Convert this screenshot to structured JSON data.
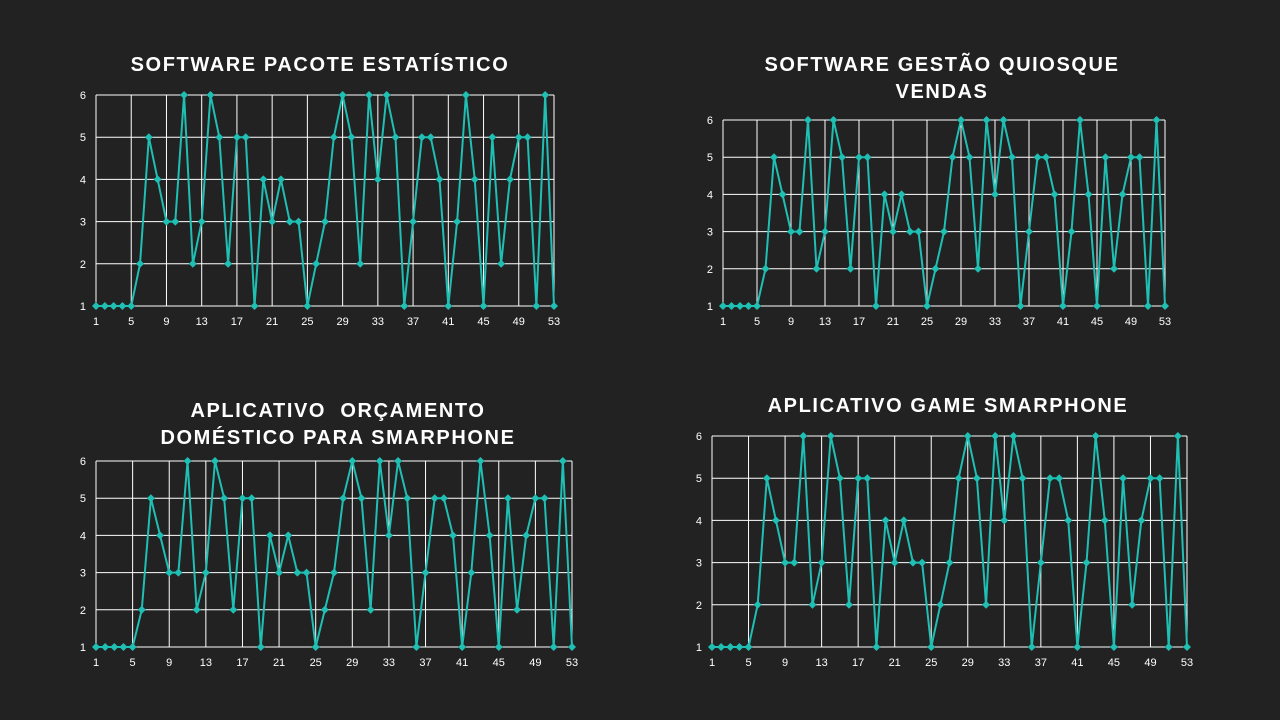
{
  "colors": {
    "background": "#222222",
    "line": "#1fbfb4",
    "grid": "#ffffff",
    "text": "#ffffff"
  },
  "chart_data": [
    {
      "type": "line",
      "title_lines": [
        "SOFTWARE PACOTE ESTATÍSTICO"
      ],
      "x": [
        1,
        2,
        3,
        4,
        5,
        6,
        7,
        8,
        9,
        10,
        11,
        12,
        13,
        14,
        15,
        16,
        17,
        18,
        19,
        20,
        21,
        22,
        23,
        24,
        25,
        26,
        27,
        28,
        29,
        30,
        31,
        32,
        33,
        34,
        35,
        36,
        37,
        38,
        39,
        40,
        41,
        42,
        43,
        44,
        45,
        46,
        47,
        48,
        49,
        50,
        51,
        52,
        53
      ],
      "values": [
        1,
        1,
        1,
        1,
        1,
        2,
        5,
        4,
        3,
        3,
        6,
        2,
        3,
        6,
        5,
        2,
        5,
        5,
        1,
        4,
        3,
        4,
        3,
        3,
        1,
        2,
        3,
        5,
        6,
        5,
        2,
        6,
        4,
        6,
        5,
        1,
        3,
        5,
        5,
        4,
        1,
        3,
        6,
        4,
        1,
        5,
        2,
        4,
        5,
        5,
        1,
        6,
        1
      ],
      "x_tick_labels": [
        "1",
        "5",
        "9",
        "13",
        "17",
        "21",
        "25",
        "29",
        "33",
        "37",
        "41",
        "45",
        "49",
        "53"
      ],
      "y_tick_labels": [
        "1",
        "2",
        "3",
        "4",
        "5",
        "6"
      ],
      "ylim": [
        1,
        6
      ],
      "grid": true,
      "marker": "diamond"
    },
    {
      "type": "line",
      "title_lines": [
        "SOFTWARE GESTÃO QUIOSQUE",
        "VENDAS"
      ],
      "x": [
        1,
        2,
        3,
        4,
        5,
        6,
        7,
        8,
        9,
        10,
        11,
        12,
        13,
        14,
        15,
        16,
        17,
        18,
        19,
        20,
        21,
        22,
        23,
        24,
        25,
        26,
        27,
        28,
        29,
        30,
        31,
        32,
        33,
        34,
        35,
        36,
        37,
        38,
        39,
        40,
        41,
        42,
        43,
        44,
        45,
        46,
        47,
        48,
        49,
        50,
        51,
        52,
        53
      ],
      "values": [
        1,
        1,
        1,
        1,
        1,
        2,
        5,
        4,
        3,
        3,
        6,
        2,
        3,
        6,
        5,
        2,
        5,
        5,
        1,
        4,
        3,
        4,
        3,
        3,
        1,
        2,
        3,
        5,
        6,
        5,
        2,
        6,
        4,
        6,
        5,
        1,
        3,
        5,
        5,
        4,
        1,
        3,
        6,
        4,
        1,
        5,
        2,
        4,
        5,
        5,
        1,
        6,
        1
      ],
      "x_tick_labels": [
        "1",
        "5",
        "9",
        "13",
        "17",
        "21",
        "25",
        "29",
        "33",
        "37",
        "41",
        "45",
        "49",
        "53"
      ],
      "y_tick_labels": [
        "1",
        "2",
        "3",
        "4",
        "5",
        "6"
      ],
      "ylim": [
        1,
        6
      ],
      "grid": true,
      "marker": "diamond"
    },
    {
      "type": "line",
      "title_lines": [
        "APLICATIVO  ORÇAMENTO",
        "DOMÉSTICO PARA SMARPHONE"
      ],
      "x": [
        1,
        2,
        3,
        4,
        5,
        6,
        7,
        8,
        9,
        10,
        11,
        12,
        13,
        14,
        15,
        16,
        17,
        18,
        19,
        20,
        21,
        22,
        23,
        24,
        25,
        26,
        27,
        28,
        29,
        30,
        31,
        32,
        33,
        34,
        35,
        36,
        37,
        38,
        39,
        40,
        41,
        42,
        43,
        44,
        45,
        46,
        47,
        48,
        49,
        50,
        51,
        52,
        53
      ],
      "values": [
        1,
        1,
        1,
        1,
        1,
        2,
        5,
        4,
        3,
        3,
        6,
        2,
        3,
        6,
        5,
        2,
        5,
        5,
        1,
        4,
        3,
        4,
        3,
        3,
        1,
        2,
        3,
        5,
        6,
        5,
        2,
        6,
        4,
        6,
        5,
        1,
        3,
        5,
        5,
        4,
        1,
        3,
        6,
        4,
        1,
        5,
        2,
        4,
        5,
        5,
        1,
        6,
        1
      ],
      "x_tick_labels": [
        "1",
        "5",
        "9",
        "13",
        "17",
        "21",
        "25",
        "29",
        "33",
        "37",
        "41",
        "45",
        "49",
        "53"
      ],
      "y_tick_labels": [
        "1",
        "2",
        "3",
        "4",
        "5",
        "6"
      ],
      "ylim": [
        1,
        6
      ],
      "grid": true,
      "marker": "diamond"
    },
    {
      "type": "line",
      "title_lines": [
        "APLICATIVO GAME SMARPHONE"
      ],
      "x": [
        1,
        2,
        3,
        4,
        5,
        6,
        7,
        8,
        9,
        10,
        11,
        12,
        13,
        14,
        15,
        16,
        17,
        18,
        19,
        20,
        21,
        22,
        23,
        24,
        25,
        26,
        27,
        28,
        29,
        30,
        31,
        32,
        33,
        34,
        35,
        36,
        37,
        38,
        39,
        40,
        41,
        42,
        43,
        44,
        45,
        46,
        47,
        48,
        49,
        50,
        51,
        52,
        53
      ],
      "values": [
        1,
        1,
        1,
        1,
        1,
        2,
        5,
        4,
        3,
        3,
        6,
        2,
        3,
        6,
        5,
        2,
        5,
        5,
        1,
        4,
        3,
        4,
        3,
        3,
        1,
        2,
        3,
        5,
        6,
        5,
        2,
        6,
        4,
        6,
        5,
        1,
        3,
        5,
        5,
        4,
        1,
        3,
        6,
        4,
        1,
        5,
        2,
        4,
        5,
        5,
        1,
        6,
        1
      ],
      "x_tick_labels": [
        "1",
        "5",
        "9",
        "13",
        "17",
        "21",
        "25",
        "29",
        "33",
        "37",
        "41",
        "45",
        "49",
        "53"
      ],
      "y_tick_labels": [
        "1",
        "2",
        "3",
        "4",
        "5",
        "6"
      ],
      "ylim": [
        1,
        6
      ],
      "grid": true,
      "marker": "diamond"
    }
  ]
}
